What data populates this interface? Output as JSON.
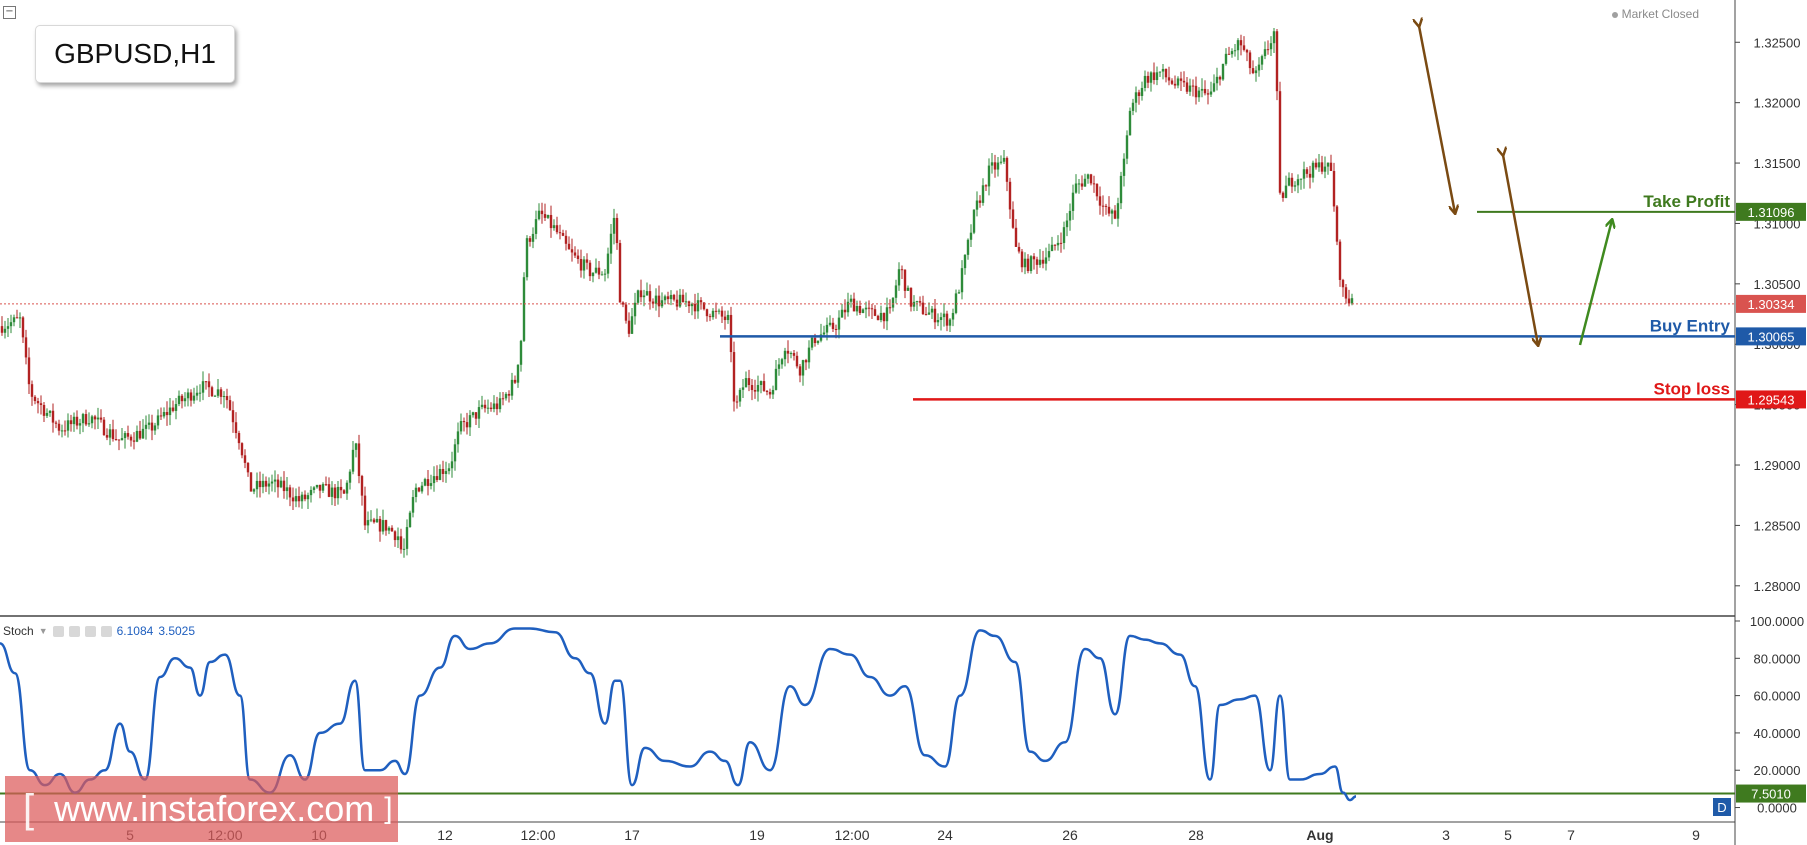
{
  "header": {
    "symbol": "GBPUSD,H1",
    "market_status": "Market Closed"
  },
  "chart_data": {
    "type": "candlestick",
    "price_axis": {
      "range": [
        1.2775,
        1.3285
      ],
      "ticks": [
        "1.32500",
        "1.32000",
        "1.31500",
        "1.31000",
        "1.30500",
        "1.30000",
        "1.29500",
        "1.29000",
        "1.28500",
        "1.28000"
      ],
      "tick_values": [
        1.325,
        1.32,
        1.315,
        1.31,
        1.305,
        1.3,
        1.295,
        1.29,
        1.285,
        1.28
      ]
    },
    "time_axis": {
      "labels": [
        "5",
        "12:00",
        "10",
        "12",
        "12:00",
        "17",
        "19",
        "12:00",
        "24",
        "26",
        "28",
        "Aug",
        "3",
        "5",
        "7",
        "9"
      ]
    },
    "price_series_approx": [
      [
        0,
        1.3015
      ],
      [
        20,
        1.302
      ],
      [
        30,
        1.296
      ],
      [
        60,
        1.293
      ],
      [
        90,
        1.294
      ],
      [
        120,
        1.292
      ],
      [
        150,
        1.293
      ],
      [
        175,
        1.295
      ],
      [
        185,
        1.2955
      ],
      [
        200,
        1.2965
      ],
      [
        225,
        1.296
      ],
      [
        240,
        1.292
      ],
      [
        250,
        1.288
      ],
      [
        270,
        1.2885
      ],
      [
        285,
        1.288
      ],
      [
        300,
        1.287
      ],
      [
        320,
        1.288
      ],
      [
        345,
        1.2875
      ],
      [
        355,
        1.292
      ],
      [
        365,
        1.285
      ],
      [
        385,
        1.285
      ],
      [
        400,
        1.284
      ],
      [
        402,
        1.282
      ],
      [
        415,
        1.288
      ],
      [
        430,
        1.289
      ],
      [
        450,
        1.29
      ],
      [
        460,
        1.293
      ],
      [
        480,
        1.2945
      ],
      [
        500,
        1.295
      ],
      [
        515,
        1.297
      ],
      [
        522,
        1.301
      ],
      [
        525,
        1.308
      ],
      [
        540,
        1.3108
      ],
      [
        555,
        1.3095
      ],
      [
        570,
        1.3075
      ],
      [
        590,
        1.306
      ],
      [
        605,
        1.306
      ],
      [
        615,
        1.311
      ],
      [
        620,
        1.304
      ],
      [
        628,
        1.301
      ],
      [
        640,
        1.3045
      ],
      [
        660,
        1.3035
      ],
      [
        690,
        1.3035
      ],
      [
        715,
        1.3025
      ],
      [
        728,
        1.302
      ],
      [
        735,
        1.2945
      ],
      [
        745,
        1.297
      ],
      [
        760,
        1.2965
      ],
      [
        770,
        1.296
      ],
      [
        785,
        1.3
      ],
      [
        800,
        1.298
      ],
      [
        815,
        1.3005
      ],
      [
        835,
        1.3015
      ],
      [
        850,
        1.3035
      ],
      [
        870,
        1.3025
      ],
      [
        890,
        1.3025
      ],
      [
        900,
        1.3065
      ],
      [
        910,
        1.3035
      ],
      [
        930,
        1.3025
      ],
      [
        950,
        1.302
      ],
      [
        960,
        1.305
      ],
      [
        975,
        1.311
      ],
      [
        990,
        1.3145
      ],
      [
        1005,
        1.315
      ],
      [
        1015,
        1.308
      ],
      [
        1025,
        1.3065
      ],
      [
        1050,
        1.3075
      ],
      [
        1065,
        1.3095
      ],
      [
        1075,
        1.313
      ],
      [
        1090,
        1.314
      ],
      [
        1105,
        1.311
      ],
      [
        1115,
        1.3105
      ],
      [
        1125,
        1.3155
      ],
      [
        1130,
        1.3195
      ],
      [
        1145,
        1.322
      ],
      [
        1160,
        1.3225
      ],
      [
        1175,
        1.3215
      ],
      [
        1195,
        1.321
      ],
      [
        1210,
        1.3205
      ],
      [
        1225,
        1.3235
      ],
      [
        1240,
        1.325
      ],
      [
        1255,
        1.322
      ],
      [
        1270,
        1.325
      ],
      [
        1275,
        1.326
      ],
      [
        1280,
        1.312
      ],
      [
        1290,
        1.3135
      ],
      [
        1300,
        1.314
      ],
      [
        1315,
        1.3145
      ],
      [
        1325,
        1.315
      ],
      [
        1332,
        1.314
      ],
      [
        1337,
        1.308
      ],
      [
        1342,
        1.3045
      ],
      [
        1348,
        1.3035
      ],
      [
        1352,
        1.304
      ]
    ],
    "levels": [
      {
        "name": "Take Profit",
        "value": 1.31096,
        "label": "1.31096",
        "color": "#3f7a1f"
      },
      {
        "name": "Buy Entry",
        "value": 1.30065,
        "label": "1.30065",
        "color": "#1f5aa8"
      },
      {
        "name": "Stop loss",
        "value": 1.29543,
        "label": "1.29543",
        "color": "#e01818"
      },
      {
        "name": "last",
        "value": 1.30334,
        "label": "1.30334",
        "color": "#d9534f"
      }
    ],
    "stochastic": {
      "name": "Stoch",
      "values_shown": [
        "6.1084",
        "3.5025"
      ],
      "ticks": [
        "100.0000",
        "80.0000",
        "60.0000",
        "40.0000",
        "20.0000",
        "0.0000"
      ],
      "tick_values": [
        100,
        80,
        60,
        40,
        20,
        0
      ],
      "level": {
        "value": 7.501,
        "label": "7.5010"
      },
      "series_approx": [
        [
          0,
          88
        ],
        [
          15,
          72
        ],
        [
          30,
          20
        ],
        [
          45,
          12
        ],
        [
          60,
          18
        ],
        [
          75,
          8
        ],
        [
          90,
          15
        ],
        [
          105,
          20
        ],
        [
          120,
          45
        ],
        [
          130,
          30
        ],
        [
          145,
          15
        ],
        [
          160,
          70
        ],
        [
          175,
          80
        ],
        [
          190,
          75
        ],
        [
          200,
          60
        ],
        [
          210,
          78
        ],
        [
          225,
          82
        ],
        [
          240,
          60
        ],
        [
          250,
          15
        ],
        [
          270,
          8
        ],
        [
          290,
          28
        ],
        [
          305,
          15
        ],
        [
          320,
          40
        ],
        [
          340,
          45
        ],
        [
          355,
          68
        ],
        [
          365,
          20
        ],
        [
          380,
          20
        ],
        [
          395,
          25
        ],
        [
          405,
          18
        ],
        [
          420,
          60
        ],
        [
          440,
          75
        ],
        [
          455,
          92
        ],
        [
          470,
          85
        ],
        [
          490,
          88
        ],
        [
          515,
          96
        ],
        [
          530,
          96
        ],
        [
          555,
          94
        ],
        [
          575,
          80
        ],
        [
          590,
          72
        ],
        [
          605,
          45
        ],
        [
          615,
          68
        ],
        [
          620,
          68
        ],
        [
          632,
          12
        ],
        [
          645,
          32
        ],
        [
          665,
          25
        ],
        [
          690,
          22
        ],
        [
          710,
          30
        ],
        [
          725,
          25
        ],
        [
          738,
          12
        ],
        [
          750,
          35
        ],
        [
          770,
          20
        ],
        [
          790,
          65
        ],
        [
          805,
          55
        ],
        [
          830,
          85
        ],
        [
          850,
          82
        ],
        [
          870,
          70
        ],
        [
          890,
          60
        ],
        [
          905,
          65
        ],
        [
          925,
          28
        ],
        [
          945,
          22
        ],
        [
          960,
          60
        ],
        [
          980,
          95
        ],
        [
          995,
          92
        ],
        [
          1015,
          78
        ],
        [
          1030,
          30
        ],
        [
          1045,
          25
        ],
        [
          1065,
          35
        ],
        [
          1085,
          85
        ],
        [
          1100,
          80
        ],
        [
          1115,
          50
        ],
        [
          1130,
          92
        ],
        [
          1145,
          90
        ],
        [
          1160,
          88
        ],
        [
          1180,
          82
        ],
        [
          1195,
          65
        ],
        [
          1210,
          15
        ],
        [
          1220,
          55
        ],
        [
          1240,
          58
        ],
        [
          1255,
          60
        ],
        [
          1270,
          20
        ],
        [
          1280,
          60
        ],
        [
          1290,
          15
        ],
        [
          1300,
          15
        ],
        [
          1320,
          18
        ],
        [
          1335,
          22
        ],
        [
          1343,
          8
        ],
        [
          1350,
          4
        ],
        [
          1356,
          6
        ]
      ]
    }
  },
  "annotations": {
    "take_profit_label": "Take Profit",
    "buy_entry_label": "Buy Entry",
    "stop_loss_label": "Stop loss",
    "timeframe_badge": "D"
  },
  "watermark": {
    "bracket_open": "[",
    "text": "www.instaforex.com",
    "bracket_close": "]"
  },
  "colors": {
    "bull": "#2e8b3a",
    "bear": "#b22222",
    "stoch": "#1f5fbf",
    "arrow_brown": "#7a4a12",
    "arrow_green": "#3f8a1f"
  }
}
